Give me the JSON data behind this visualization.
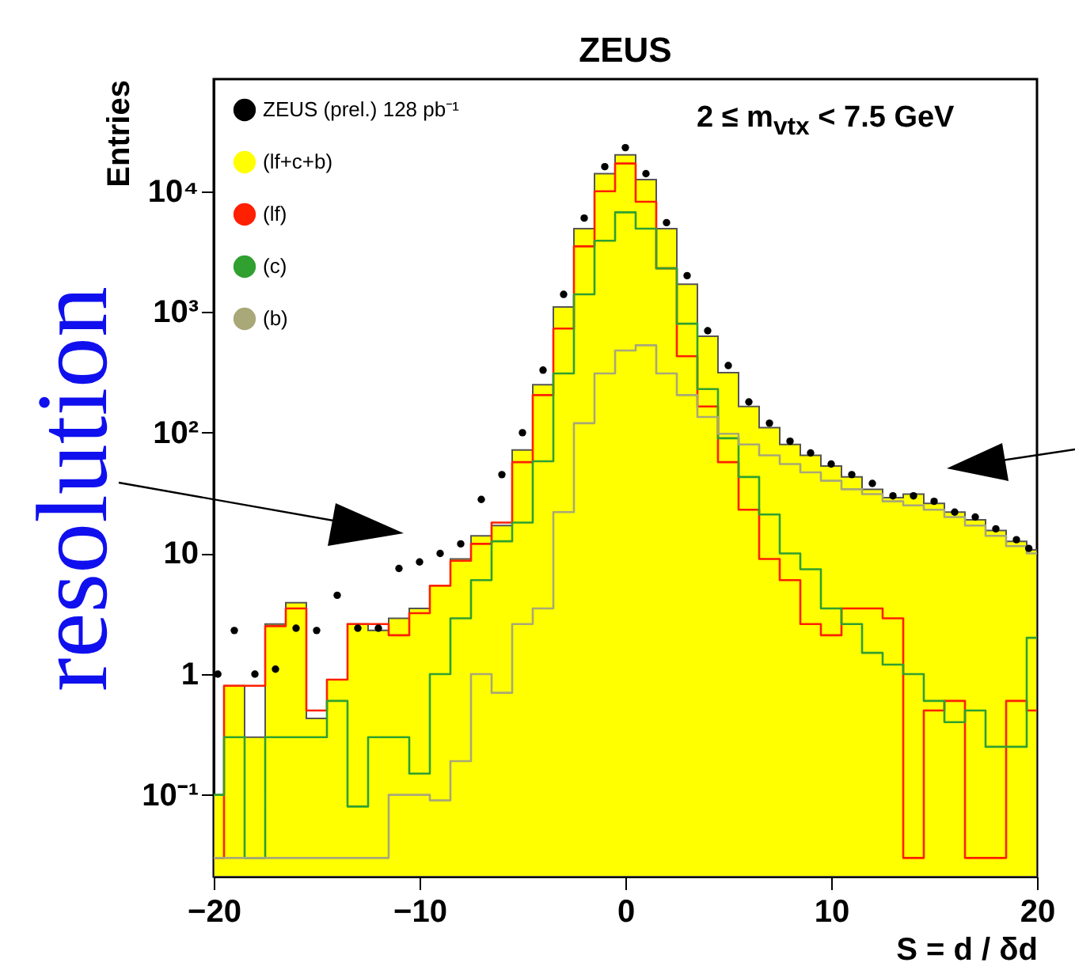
{
  "chart_data": {
    "type": "step",
    "title": "ZEUS",
    "xlabel": "S = d / δd",
    "ylabel": "Entries",
    "annotations": [
      "2 ≤ m$_{vtx}$ < 7.5 GeV",
      "resolution"
    ],
    "log": true,
    "xlim": [
      -20,
      20
    ],
    "xticks": [
      -20,
      -10,
      0,
      10,
      20
    ],
    "ylim": [
      0.021,
      85000
    ],
    "yticks": [
      {
        "value": 0.1,
        "label": "10⁻¹"
      },
      1,
      10,
      {
        "value": 100,
        "label": "10²"
      },
      {
        "value": 1000,
        "label": "10³"
      },
      {
        "value": 10000,
        "label": "10⁴"
      }
    ],
    "legend": "top left",
    "series": [
      {
        "name": "ZEUS (prel.) 128 pb⁻¹",
        "color": "#000000",
        "type": "scatter",
        "marker": "circle",
        "x": [
          -19.8,
          -19,
          -18,
          -17,
          -16,
          -15,
          -14,
          -13,
          -12,
          -11,
          -10,
          -9,
          -8,
          -7,
          -6,
          -5,
          -4,
          -3,
          -2,
          -1,
          0,
          1,
          2,
          3,
          4,
          5,
          6,
          7,
          8,
          9,
          10,
          11,
          12,
          13,
          14,
          15,
          16,
          17,
          18,
          19,
          19.6
        ],
        "values": [
          1,
          2.3,
          1,
          1.1,
          2.4,
          2.3,
          4.5,
          2.4,
          2.4,
          7.5,
          8.5,
          10,
          12,
          28,
          45,
          100,
          330,
          1400,
          6000,
          16000,
          23000,
          14000,
          5500,
          2000,
          700,
          360,
          180,
          120,
          85,
          68,
          55,
          45,
          38,
          30,
          30,
          27,
          22,
          20,
          16,
          13,
          11
        ]
      },
      {
        "name": "(lf+c+b)",
        "color": "#ffff00",
        "type": "area",
        "x": [
          -20,
          -19,
          -18,
          -17,
          -16,
          -15,
          -14,
          -13,
          -12,
          -11,
          -10,
          -9,
          -8,
          -7,
          -6,
          -5,
          -4,
          -3,
          -2,
          -1,
          0,
          1,
          2,
          3,
          4,
          5,
          6,
          7,
          8,
          9,
          10,
          11,
          12,
          13,
          14,
          15,
          16,
          17,
          18,
          19,
          20
        ],
        "values": [
          0.1,
          0.8,
          0.3,
          2.6,
          3.9,
          0.43,
          0.9,
          2.6,
          2.3,
          2.9,
          3.5,
          5.4,
          9,
          14,
          17,
          72,
          250,
          1100,
          4900,
          14000,
          20000,
          12500,
          4900,
          1700,
          630,
          315,
          165,
          110,
          80,
          65,
          53,
          43,
          34,
          29,
          31,
          26,
          22,
          19,
          15.5,
          12.6,
          10.7
        ]
      },
      {
        "name": "(lf)",
        "color": "#ff2000",
        "type": "step",
        "x": [
          -20,
          -19,
          -18,
          -17,
          -16,
          -15,
          -14,
          -13,
          -12,
          -11,
          -10,
          -9,
          -8,
          -7,
          -6,
          -5,
          -4,
          -3,
          -2,
          -1,
          0,
          1,
          2,
          3,
          4,
          5,
          6,
          7,
          8,
          9,
          10,
          11,
          12,
          13,
          14,
          15,
          16,
          17,
          18,
          19,
          20
        ],
        "values": [
          0.03,
          0.8,
          0.8,
          2.5,
          3.5,
          0.5,
          0.9,
          2.6,
          2.6,
          2.1,
          3.2,
          5.4,
          8.7,
          12,
          18,
          57,
          205,
          730,
          3500,
          10000,
          17000,
          8200,
          2300,
          430,
          165,
          57,
          23,
          9,
          6,
          2.6,
          2.1,
          3.5,
          3.5,
          2.9,
          0.03,
          0.5,
          0.6,
          0.03,
          0.03,
          0.6,
          0.5
        ]
      },
      {
        "name": "(c)",
        "color": "#30a030",
        "type": "step",
        "x": [
          -20,
          -19,
          -18,
          -17,
          -16,
          -15,
          -14,
          -13,
          -12,
          -11,
          -10,
          -9,
          -8,
          -7,
          -6,
          -5,
          -4,
          -3,
          -2,
          -1,
          0,
          1,
          2,
          3,
          4,
          5,
          6,
          7,
          8,
          9,
          10,
          11,
          12,
          13,
          14,
          15,
          16,
          17,
          18,
          19,
          20
        ],
        "values": [
          0.1,
          0.3,
          0.03,
          0.3,
          0.3,
          0.3,
          0.6,
          0.08,
          0.3,
          0.3,
          0.15,
          1,
          2.9,
          6,
          12.6,
          18,
          58,
          310,
          1400,
          3900,
          6700,
          4900,
          2300,
          800,
          230,
          90,
          43,
          21,
          10,
          7.4,
          3.5,
          2.6,
          1.5,
          1.2,
          1,
          0.6,
          0.4,
          0.5,
          0.25,
          0.25,
          2
        ]
      },
      {
        "name": "(b)",
        "color": "#a8a878",
        "type": "step",
        "x": [
          -20,
          -19,
          -18,
          -17,
          -16,
          -15,
          -14,
          -13,
          -12,
          -11,
          -10,
          -9,
          -8,
          -7,
          -6,
          -5,
          -4,
          -3,
          -2,
          -1,
          0,
          1,
          2,
          3,
          4,
          5,
          6,
          7,
          8,
          9,
          10,
          11,
          12,
          13,
          14,
          15,
          16,
          17,
          18,
          19,
          20
        ],
        "values": [
          0.03,
          0.03,
          0.03,
          0.03,
          0.03,
          0.03,
          0.03,
          0.03,
          0.03,
          0.1,
          0.1,
          0.09,
          0.19,
          1,
          0.7,
          2.6,
          3.5,
          22,
          120,
          310,
          480,
          530,
          310,
          205,
          135,
          98,
          80,
          65,
          55,
          47,
          40,
          34,
          31,
          27,
          25,
          23,
          20,
          17,
          14,
          11.5,
          10
        ]
      }
    ]
  }
}
